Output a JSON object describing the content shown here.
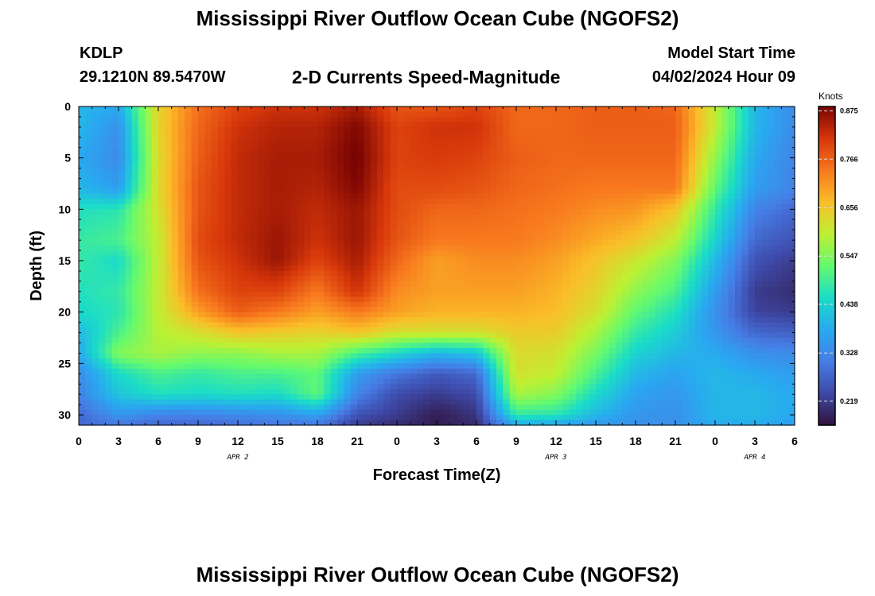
{
  "header": {
    "title": "Mississippi River Outflow Ocean Cube (NGOFS2)",
    "station": "KDLP",
    "location": "29.1210N  89.5470W",
    "subtitle": "2-D Currents Speed-Magnitude",
    "start_label": "Model Start Time",
    "start_time": "04/02/2024 Hour 09"
  },
  "footer": {
    "title": "Mississippi River Outflow Ocean Cube (NGOFS2)"
  },
  "chart_data": {
    "type": "heatmap",
    "title": "2-D Currents Speed-Magnitude",
    "xlabel": "Forecast Time(Z)",
    "ylabel": "Depth (ft)",
    "x_hours_range": [
      0,
      54
    ],
    "x_ticks": [
      {
        "h": 0,
        "label": "0"
      },
      {
        "h": 3,
        "label": "3"
      },
      {
        "h": 6,
        "label": "6"
      },
      {
        "h": 9,
        "label": "9"
      },
      {
        "h": 12,
        "label": "12"
      },
      {
        "h": 15,
        "label": "15"
      },
      {
        "h": 18,
        "label": "18"
      },
      {
        "h": 21,
        "label": "21"
      },
      {
        "h": 24,
        "label": "0"
      },
      {
        "h": 27,
        "label": "3"
      },
      {
        "h": 30,
        "label": "6"
      },
      {
        "h": 33,
        "label": "9"
      },
      {
        "h": 36,
        "label": "12"
      },
      {
        "h": 39,
        "label": "15"
      },
      {
        "h": 42,
        "label": "18"
      },
      {
        "h": 45,
        "label": "21"
      },
      {
        "h": 48,
        "label": "0"
      },
      {
        "h": 51,
        "label": "3"
      },
      {
        "h": 54,
        "label": "6"
      }
    ],
    "day_labels": [
      {
        "h": 12,
        "label": "APR 2"
      },
      {
        "h": 36,
        "label": "APR 3"
      },
      {
        "h": 51,
        "label": "APR 4"
      }
    ],
    "y_range": [
      0,
      31
    ],
    "y_ticks": [
      0,
      5,
      10,
      15,
      20,
      25,
      30
    ],
    "colorbar": {
      "unit": "Knots",
      "range": [
        0.165,
        0.885
      ],
      "ticks": [
        0.875,
        0.766,
        0.656,
        0.547,
        0.438,
        0.328,
        0.219
      ]
    },
    "speed_knots_by_hour": {
      "hours": [
        0,
        3,
        6,
        9,
        12,
        15,
        18,
        21,
        24,
        27,
        30,
        33,
        36,
        39,
        42,
        45,
        48,
        51,
        54
      ],
      "depths_ft": [
        0,
        2,
        5,
        8,
        10,
        13,
        15,
        18,
        20,
        22,
        24,
        26,
        28,
        30,
        31
      ],
      "values": [
        [
          0.4,
          0.4,
          0.38,
          0.4,
          0.46,
          0.48,
          0.48,
          0.46,
          0.45,
          0.4,
          0.38,
          0.33,
          0.32,
          0.28,
          0.28
        ],
        [
          0.38,
          0.34,
          0.33,
          0.36,
          0.47,
          0.5,
          0.45,
          0.48,
          0.47,
          0.5,
          0.55,
          0.45,
          0.42,
          0.35,
          0.3
        ],
        [
          0.64,
          0.64,
          0.63,
          0.63,
          0.62,
          0.6,
          0.6,
          0.6,
          0.6,
          0.59,
          0.58,
          0.5,
          0.46,
          0.32,
          0.28
        ],
        [
          0.75,
          0.76,
          0.77,
          0.78,
          0.78,
          0.79,
          0.78,
          0.75,
          0.7,
          0.62,
          0.56,
          0.48,
          0.45,
          0.32,
          0.28
        ],
        [
          0.8,
          0.82,
          0.83,
          0.83,
          0.83,
          0.83,
          0.82,
          0.8,
          0.77,
          0.66,
          0.56,
          0.5,
          0.46,
          0.33,
          0.29
        ],
        [
          0.82,
          0.84,
          0.85,
          0.85,
          0.85,
          0.86,
          0.86,
          0.8,
          0.74,
          0.65,
          0.58,
          0.5,
          0.45,
          0.34,
          0.3
        ],
        [
          0.82,
          0.84,
          0.85,
          0.84,
          0.83,
          0.82,
          0.8,
          0.74,
          0.7,
          0.64,
          0.58,
          0.52,
          0.52,
          0.37,
          0.3
        ],
        [
          0.85,
          0.88,
          0.89,
          0.88,
          0.86,
          0.86,
          0.85,
          0.82,
          0.74,
          0.66,
          0.5,
          0.36,
          0.32,
          0.25,
          0.22
        ],
        [
          0.78,
          0.8,
          0.8,
          0.79,
          0.79,
          0.78,
          0.76,
          0.72,
          0.7,
          0.62,
          0.45,
          0.3,
          0.24,
          0.22,
          0.2
        ],
        [
          0.78,
          0.82,
          0.81,
          0.79,
          0.76,
          0.74,
          0.7,
          0.7,
          0.68,
          0.62,
          0.4,
          0.26,
          0.22,
          0.18,
          0.18
        ],
        [
          0.8,
          0.82,
          0.8,
          0.78,
          0.76,
          0.74,
          0.72,
          0.7,
          0.68,
          0.62,
          0.42,
          0.28,
          0.24,
          0.21,
          0.2
        ],
        [
          0.76,
          0.76,
          0.77,
          0.76,
          0.75,
          0.74,
          0.72,
          0.7,
          0.68,
          0.65,
          0.63,
          0.62,
          0.58,
          0.48,
          0.38
        ],
        [
          0.76,
          0.76,
          0.76,
          0.75,
          0.74,
          0.72,
          0.7,
          0.68,
          0.67,
          0.65,
          0.62,
          0.6,
          0.55,
          0.47,
          0.37
        ],
        [
          0.77,
          0.77,
          0.76,
          0.74,
          0.72,
          0.69,
          0.66,
          0.64,
          0.62,
          0.58,
          0.54,
          0.5,
          0.45,
          0.4,
          0.35
        ],
        [
          0.77,
          0.77,
          0.76,
          0.74,
          0.71,
          0.66,
          0.61,
          0.56,
          0.52,
          0.48,
          0.44,
          0.4,
          0.37,
          0.35,
          0.34
        ],
        [
          0.76,
          0.77,
          0.76,
          0.74,
          0.66,
          0.6,
          0.55,
          0.5,
          0.46,
          0.43,
          0.4,
          0.37,
          0.35,
          0.34,
          0.34
        ],
        [
          0.6,
          0.6,
          0.56,
          0.52,
          0.48,
          0.44,
          0.4,
          0.36,
          0.34,
          0.35,
          0.38,
          0.4,
          0.4,
          0.4,
          0.38
        ],
        [
          0.4,
          0.4,
          0.38,
          0.36,
          0.32,
          0.28,
          0.25,
          0.22,
          0.23,
          0.28,
          0.34,
          0.38,
          0.4,
          0.4,
          0.38
        ],
        [
          0.33,
          0.33,
          0.32,
          0.32,
          0.28,
          0.25,
          0.22,
          0.2,
          0.22,
          0.27,
          0.33,
          0.36,
          0.38,
          0.38,
          0.36
        ]
      ]
    }
  }
}
